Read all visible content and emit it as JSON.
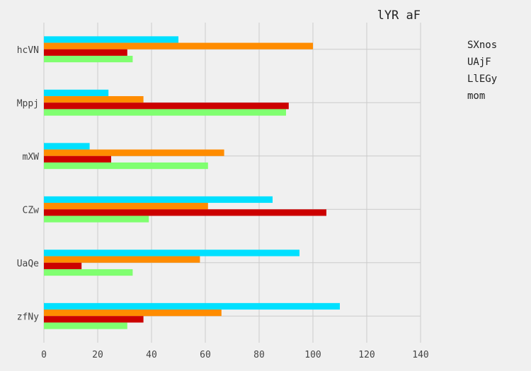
{
  "chart_data": {
    "type": "bar",
    "orientation": "horizontal",
    "title": "lYR aF",
    "xlabel": "",
    "ylabel": "",
    "xlim": [
      0,
      140
    ],
    "xticks": [
      0,
      20,
      40,
      60,
      80,
      100,
      120,
      140
    ],
    "grid": true,
    "legend_position": "right",
    "categories": [
      "hcVN",
      "Mppj",
      "mXW",
      "CZw",
      "UaQe",
      "zfNy"
    ],
    "series": [
      {
        "name": "SXnos",
        "color": "#00e0ff",
        "values": [
          50,
          24,
          17,
          85,
          95,
          110
        ]
      },
      {
        "name": "UAjF",
        "color": "#ff8c00",
        "values": [
          100,
          37,
          67,
          61,
          58,
          66
        ]
      },
      {
        "name": "LlEGy",
        "color": "#cc0000",
        "values": [
          31,
          91,
          25,
          105,
          14,
          37
        ]
      },
      {
        "name": "mom",
        "color": "#80ff70",
        "values": [
          33,
          90,
          61,
          39,
          33,
          31
        ]
      }
    ]
  }
}
